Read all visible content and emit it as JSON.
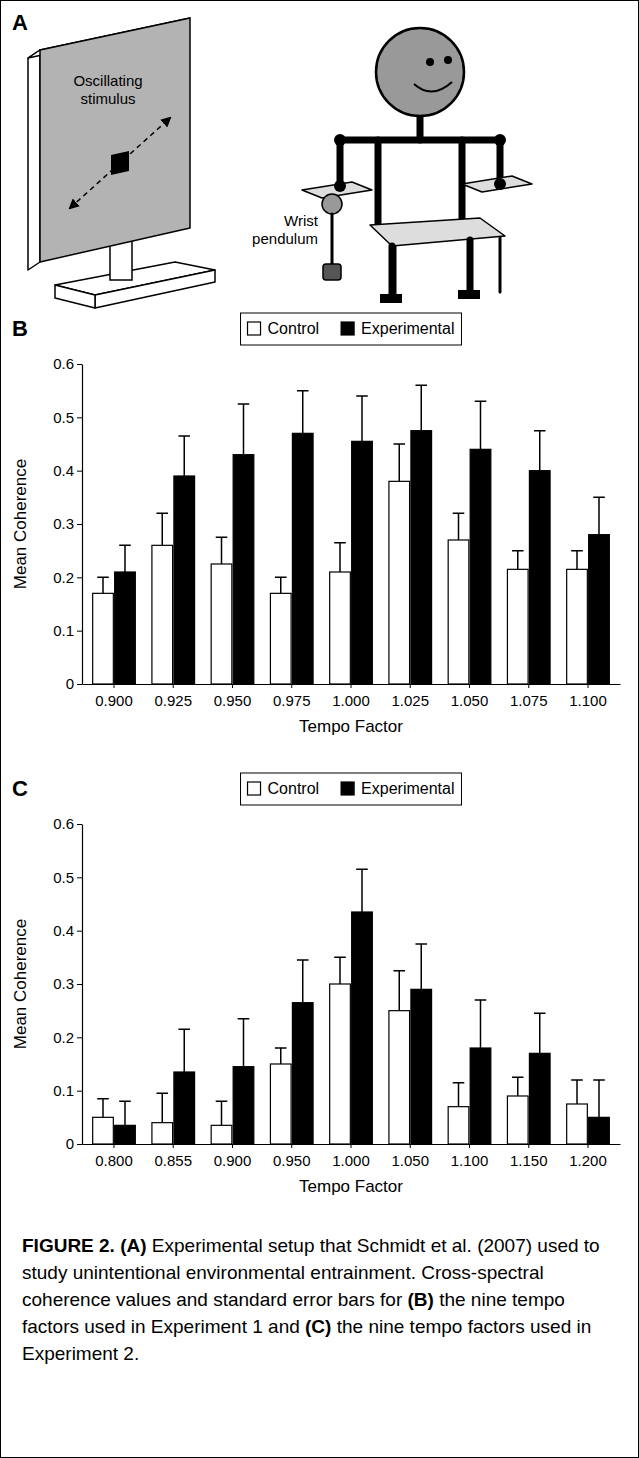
{
  "diagram": {
    "panel": "A",
    "stimulus_label": "Oscillating stimulus",
    "pendulum_label": "Wrist pendulum"
  },
  "chart_data": [
    {
      "type": "bar",
      "panel": "B",
      "categories": [
        "0.900",
        "0.925",
        "0.950",
        "0.975",
        "1.000",
        "1.025",
        "1.050",
        "1.075",
        "1.100"
      ],
      "series": [
        {
          "name": "Control",
          "color": "#ffffff",
          "values": [
            0.17,
            0.26,
            0.225,
            0.17,
            0.21,
            0.38,
            0.27,
            0.215,
            0.215
          ],
          "errors": [
            0.03,
            0.06,
            0.05,
            0.03,
            0.055,
            0.07,
            0.05,
            0.035,
            0.035
          ]
        },
        {
          "name": "Experimental",
          "color": "#000000",
          "values": [
            0.21,
            0.39,
            0.43,
            0.47,
            0.455,
            0.475,
            0.44,
            0.4,
            0.28
          ],
          "errors": [
            0.05,
            0.075,
            0.095,
            0.08,
            0.085,
            0.085,
            0.09,
            0.075,
            0.07
          ]
        }
      ],
      "x_label": "Tempo Factor",
      "y_label": "Mean Coherence",
      "ylim": [
        0,
        0.6
      ],
      "yticks": [
        0,
        0.1,
        0.2,
        0.3,
        0.4,
        0.5,
        0.6
      ],
      "legend": "top",
      "grid": false
    },
    {
      "type": "bar",
      "panel": "C",
      "categories": [
        "0.800",
        "0.855",
        "0.900",
        "0.950",
        "1.000",
        "1.050",
        "1.100",
        "1.150",
        "1.200"
      ],
      "series": [
        {
          "name": "Control",
          "color": "#ffffff",
          "values": [
            0.05,
            0.04,
            0.035,
            0.15,
            0.3,
            0.25,
            0.07,
            0.09,
            0.075
          ],
          "errors": [
            0.035,
            0.055,
            0.045,
            0.03,
            0.05,
            0.075,
            0.045,
            0.035,
            0.045
          ]
        },
        {
          "name": "Experimental",
          "color": "#000000",
          "values": [
            0.035,
            0.135,
            0.145,
            0.265,
            0.435,
            0.29,
            0.18,
            0.17,
            0.05
          ],
          "errors": [
            0.045,
            0.08,
            0.09,
            0.08,
            0.08,
            0.085,
            0.09,
            0.075,
            0.07
          ]
        }
      ],
      "x_label": "Tempo Factor",
      "y_label": "Mean Coherence",
      "ylim": [
        0,
        0.6
      ],
      "yticks": [
        0,
        0.1,
        0.2,
        0.3,
        0.4,
        0.5,
        0.6
      ],
      "legend": "top",
      "grid": false
    }
  ],
  "caption": [
    {
      "text": "FIGURE 2.",
      "bold": true
    },
    {
      "text": " ",
      "bold": false
    },
    {
      "text": "(A)",
      "bold": true
    },
    {
      "text": " Experimental setup that Schmidt et al. (2007) used to study unintentional environmental entrainment. Cross-spectral coherence values and standard error bars for ",
      "bold": false
    },
    {
      "text": "(B)",
      "bold": true
    },
    {
      "text": " the nine tempo factors used in Experiment 1 and ",
      "bold": false
    },
    {
      "text": "(C)",
      "bold": true
    },
    {
      "text": " the nine tempo factors used in Experiment 2.",
      "bold": false
    }
  ]
}
